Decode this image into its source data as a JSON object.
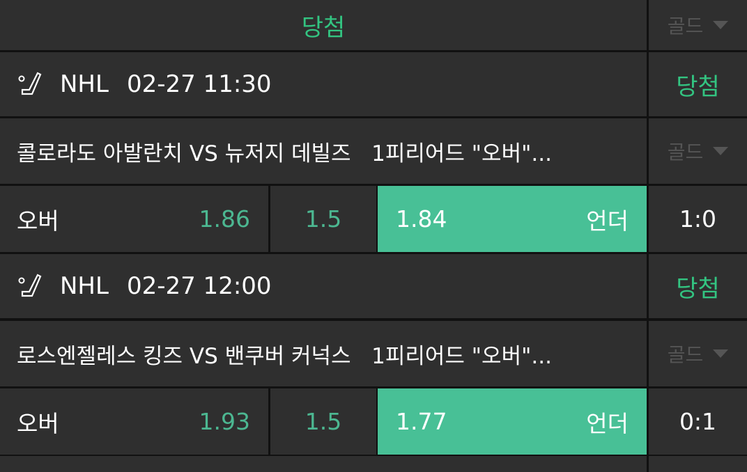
{
  "header": {
    "title": "당첨",
    "gold_label": "골드"
  },
  "games": [
    {
      "league": "NHL",
      "datetime": "02-27 11:30",
      "status": "당첨",
      "title": "콜로라도 아발란치 VS 뉴저지 데빌즈   1피리어드 \"오버\"...",
      "gold_label": "골드",
      "over_label": "오버",
      "over_odds": "1.86",
      "line": "1.5",
      "under_odds": "1.84",
      "under_label": "언더",
      "score": "1:0",
      "selected": "under"
    },
    {
      "league": "NHL",
      "datetime": "02-27 12:00",
      "status": "당첨",
      "title": "로스엔젤레스 킹즈 VS 밴쿠버 커넉스   1피리어드 \"오버\"...",
      "gold_label": "골드",
      "over_label": "오버",
      "over_odds": "1.93",
      "line": "1.5",
      "under_odds": "1.77",
      "under_label": "언더",
      "score": "0:1",
      "selected": "under"
    }
  ],
  "icons": {
    "sport": "hockey-stick-icon",
    "dropdown": "triangle-down-icon"
  },
  "colors": {
    "accent": "#33c481",
    "selected_fill": "#48c096",
    "background": "#2f2f2f"
  }
}
